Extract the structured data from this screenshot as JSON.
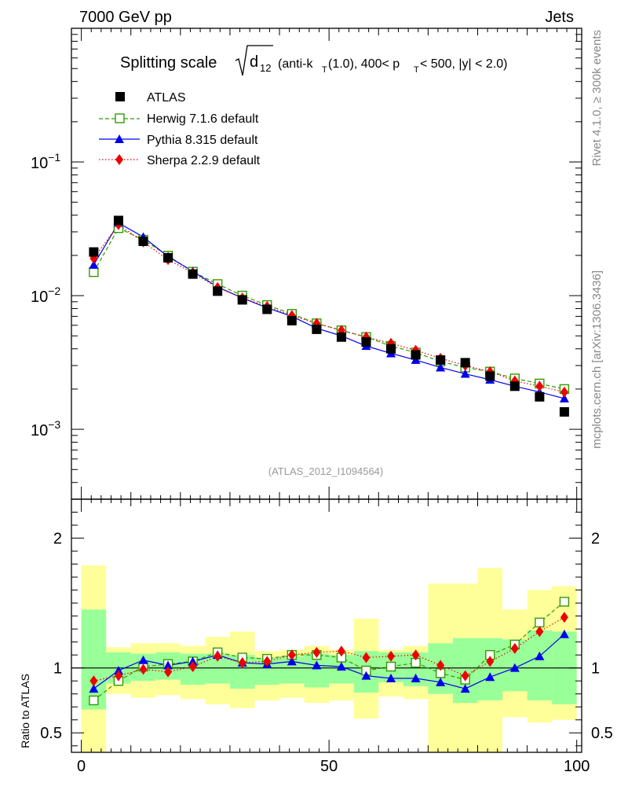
{
  "header": {
    "left": "7000 GeV pp",
    "right": "Jets"
  },
  "side": {
    "rivet": "Rivet 4.1.0, ≥ 300k events",
    "mcplots": "mcplots.cern.ch [arXiv:1306.3436]"
  },
  "chart_data": {
    "type": "line",
    "title": {
      "main": "Splitting scale ",
      "sym": "d",
      "sub12": "12",
      "p1": " (anti-k",
      "subT": "T",
      "p2": "(1.0), 400< p",
      "p3": " < 500, |y| < 2.0)"
    },
    "analysis_label": "(ATLAS_2012_I1094564)",
    "x": [
      2.5,
      7.5,
      12.5,
      17.5,
      22.5,
      27.5,
      32.5,
      37.5,
      42.5,
      47.5,
      52.5,
      57.5,
      62.5,
      67.5,
      72.5,
      77.5,
      82.5,
      87.5,
      92.5,
      97.5
    ],
    "xlim": [
      -2,
      101
    ],
    "x_ticks": [
      0,
      50,
      100
    ],
    "x_tick_labels": [
      "0",
      "50",
      "100"
    ],
    "main_ylim": [
      0.0003,
      1.0
    ],
    "main_y_scale": "log",
    "main_y_ticks": [
      0.001,
      0.01,
      0.1
    ],
    "main_y_tick_labels": [
      {
        "base": "10",
        "exp": "−3"
      },
      {
        "base": "10",
        "exp": "−2"
      },
      {
        "base": "10",
        "exp": "−1"
      }
    ],
    "series": [
      {
        "name": "ATLAS",
        "marker": "square",
        "color": "#000000",
        "values": [
          0.0212,
          0.0365,
          0.0255,
          0.0192,
          0.0145,
          0.0108,
          0.0093,
          0.0079,
          0.0065,
          0.0056,
          0.0049,
          0.0045,
          0.004,
          0.0036,
          0.0033,
          0.00315,
          0.0025,
          0.0021,
          0.00175,
          0.00135
        ]
      },
      {
        "name": "Herwig 7.1.6 default",
        "marker": "open-square",
        "color": "#339900",
        "dash": "dashed",
        "values": [
          0.015,
          0.032,
          0.0262,
          0.0199,
          0.0151,
          0.0122,
          0.01,
          0.0085,
          0.0073,
          0.0062,
          0.0055,
          0.0049,
          0.0042,
          0.00375,
          0.00322,
          0.0029,
          0.0027,
          0.0024,
          0.0022,
          0.002
        ]
      },
      {
        "name": "Pythia 8.315 default",
        "marker": "triangle",
        "color": "#0000ee",
        "dash": "solid",
        "values": [
          0.017,
          0.035,
          0.0275,
          0.0196,
          0.0152,
          0.0116,
          0.0096,
          0.0081,
          0.007,
          0.0057,
          0.005,
          0.0042,
          0.0037,
          0.0033,
          0.0029,
          0.0026,
          0.00235,
          0.0021,
          0.0019,
          0.0017
        ]
      },
      {
        "name": "Sherpa 2.2.9 default",
        "marker": "diamond",
        "color": "#ee0000",
        "dash": "dotted",
        "values": [
          0.019,
          0.034,
          0.0252,
          0.0186,
          0.0148,
          0.0115,
          0.0096,
          0.0083,
          0.0071,
          0.0062,
          0.0055,
          0.0049,
          0.0044,
          0.0039,
          0.0034,
          0.003,
          0.0027,
          0.0023,
          0.0021,
          0.0019
        ]
      }
    ],
    "ratio": {
      "ylabel": "Ratio to ATLAS",
      "ylim": [
        0.35,
        2.3
      ],
      "y_ticks": [
        0.5,
        1,
        2
      ],
      "y_tick_labels": [
        "0.5",
        "1",
        "2"
      ],
      "band_inner": [
        [
          0.68,
          1.45
        ],
        [
          0.88,
          1.12
        ],
        [
          0.9,
          1.11
        ],
        [
          0.91,
          1.12
        ],
        [
          0.87,
          1.11
        ],
        [
          0.88,
          1.11
        ],
        [
          0.84,
          1.1
        ],
        [
          0.87,
          1.08
        ],
        [
          0.88,
          1.09
        ],
        [
          0.85,
          1.11
        ],
        [
          0.88,
          1.1
        ],
        [
          0.81,
          1.13
        ],
        [
          0.89,
          1.12
        ],
        [
          0.86,
          1.12
        ],
        [
          0.8,
          1.19
        ],
        [
          0.73,
          1.23
        ],
        [
          0.75,
          1.23
        ],
        [
          0.82,
          1.22
        ],
        [
          0.75,
          1.29
        ],
        [
          0.72,
          1.28
        ]
      ],
      "band_outer": [
        [
          0.0,
          1.79
        ],
        [
          0.8,
          1.16
        ],
        [
          0.77,
          1.19
        ],
        [
          0.79,
          1.19
        ],
        [
          0.76,
          1.17
        ],
        [
          0.72,
          1.24
        ],
        [
          0.69,
          1.28
        ],
        [
          0.75,
          1.13
        ],
        [
          0.77,
          1.14
        ],
        [
          0.73,
          1.17
        ],
        [
          0.75,
          1.14
        ],
        [
          0.61,
          1.38
        ],
        [
          0.78,
          1.14
        ],
        [
          0.76,
          1.17
        ],
        [
          0.2,
          1.65
        ],
        [
          0.2,
          1.65
        ],
        [
          0.2,
          1.77
        ],
        [
          0.62,
          1.45
        ],
        [
          0.58,
          1.6
        ],
        [
          0.6,
          1.63
        ]
      ],
      "series": [
        {
          "name": "Herwig 7.1.6 default",
          "values": [
            0.75,
            0.9,
            1.01,
            1.03,
            1.05,
            1.12,
            1.08,
            1.07,
            1.1,
            1.1,
            1.08,
            0.98,
            1.01,
            1.04,
            0.96,
            0.91,
            1.1,
            1.18,
            1.35,
            1.51
          ]
        },
        {
          "name": "Pythia 8.315 default",
          "values": [
            0.84,
            0.98,
            1.06,
            1.02,
            1.05,
            1.1,
            1.04,
            1.03,
            1.05,
            1.02,
            1.01,
            0.94,
            0.92,
            0.92,
            0.89,
            0.84,
            0.93,
            1.0,
            1.09,
            1.26
          ]
        },
        {
          "name": "Sherpa 2.2.9 default",
          "values": [
            0.9,
            0.94,
            0.99,
            0.97,
            1.01,
            1.09,
            1.04,
            1.05,
            1.1,
            1.12,
            1.13,
            1.08,
            1.09,
            1.1,
            1.02,
            0.94,
            1.05,
            1.15,
            1.28,
            1.39
          ]
        }
      ]
    }
  }
}
